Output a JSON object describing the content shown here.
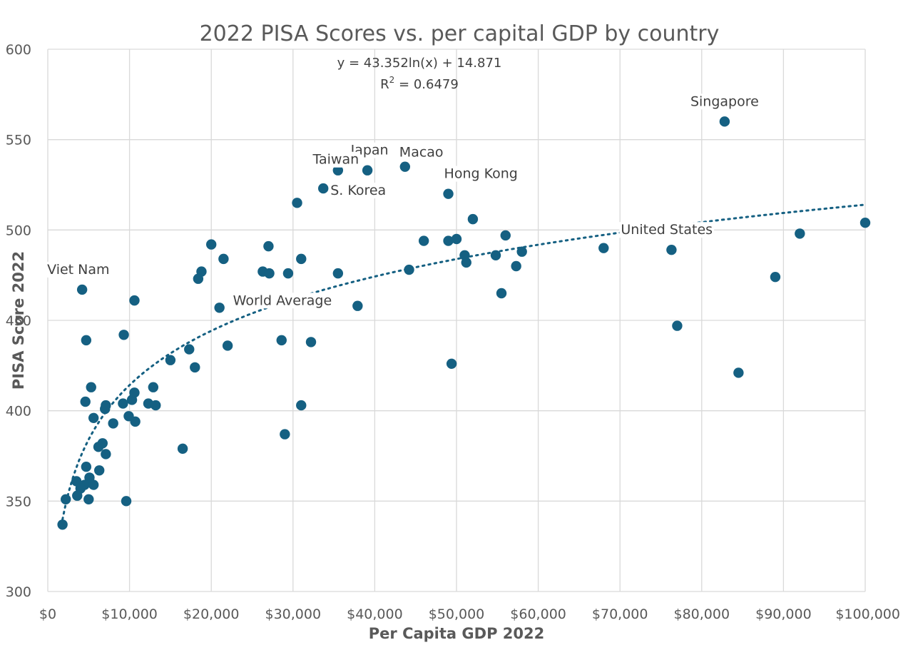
{
  "chart_data": {
    "type": "scatter",
    "title": "2022 PISA Scores vs. per capital GDP by country",
    "xlabel": "Per Capita GDP 2022",
    "ylabel": "PISA Score 2022",
    "xlim": [
      0,
      100000
    ],
    "ylim": [
      300,
      600
    ],
    "x_ticks": [
      0,
      10000,
      20000,
      30000,
      40000,
      50000,
      60000,
      70000,
      80000,
      90000,
      100000
    ],
    "x_tick_labels": [
      "$0",
      "$10,000",
      "$20,000",
      "$30,000",
      "$40,000",
      "$50,000",
      "$60,000",
      "$70,000",
      "$80,000",
      "$90,000",
      "$100,000"
    ],
    "y_ticks": [
      300,
      350,
      400,
      450,
      500,
      550,
      600
    ],
    "y_tick_labels": [
      "300",
      "350",
      "400",
      "450",
      "500",
      "550",
      "600"
    ],
    "grid": true,
    "legend": "none",
    "point_color": "#156082",
    "trendline": {
      "type": "logarithmic",
      "a": 43.352,
      "b": 14.871,
      "equation_label": "y = 43.352ln(x) + 14.871",
      "r2_label": "R",
      "r2_sup": "2",
      "r2_value": " = 0.6479",
      "style": "dotted"
    },
    "labels": [
      {
        "text": "Singapore",
        "x": 82800,
        "y": 560
      },
      {
        "text": "Japan",
        "x": 39100,
        "y": 533
      },
      {
        "text": "Macao",
        "x": 43700,
        "y": 535
      },
      {
        "text": "Taiwan",
        "x": 35500,
        "y": 533
      },
      {
        "text": "Hong Kong",
        "x": 49000,
        "y": 520
      },
      {
        "text": "S. Korea",
        "x": 33700,
        "y": 523
      },
      {
        "text": "United States",
        "x": 76300,
        "y": 489
      },
      {
        "text": "Viet Nam",
        "x": 4200,
        "y": 467
      },
      {
        "text": "World Average",
        "x": 21000,
        "y": 457
      }
    ],
    "points": [
      [
        82800,
        560
      ],
      [
        43700,
        535
      ],
      [
        39100,
        533
      ],
      [
        35500,
        533
      ],
      [
        33700,
        523
      ],
      [
        49000,
        520
      ],
      [
        30500,
        515
      ],
      [
        52000,
        506
      ],
      [
        100000,
        504
      ],
      [
        92000,
        498
      ],
      [
        56000,
        497
      ],
      [
        50000,
        495
      ],
      [
        49000,
        494
      ],
      [
        46000,
        494
      ],
      [
        20000,
        492
      ],
      [
        27000,
        491
      ],
      [
        68000,
        490
      ],
      [
        76300,
        489
      ],
      [
        58000,
        488
      ],
      [
        51000,
        486
      ],
      [
        54800,
        486
      ],
      [
        21500,
        484
      ],
      [
        31000,
        484
      ],
      [
        51200,
        482
      ],
      [
        57300,
        480
      ],
      [
        44200,
        478
      ],
      [
        26300,
        477
      ],
      [
        27100,
        476
      ],
      [
        29400,
        476
      ],
      [
        35500,
        476
      ],
      [
        18800,
        477
      ],
      [
        18400,
        473
      ],
      [
        89000,
        474
      ],
      [
        4200,
        467
      ],
      [
        55500,
        465
      ],
      [
        10600,
        461
      ],
      [
        37900,
        458
      ],
      [
        21000,
        457
      ],
      [
        77000,
        447
      ],
      [
        9300,
        442
      ],
      [
        4700,
        439
      ],
      [
        28600,
        439
      ],
      [
        32200,
        438
      ],
      [
        22000,
        436
      ],
      [
        17300,
        434
      ],
      [
        15000,
        428
      ],
      [
        49400,
        426
      ],
      [
        18000,
        424
      ],
      [
        84500,
        421
      ],
      [
        5300,
        413
      ],
      [
        12900,
        413
      ],
      [
        10600,
        410
      ],
      [
        10300,
        406
      ],
      [
        4600,
        405
      ],
      [
        9200,
        404
      ],
      [
        12300,
        404
      ],
      [
        13200,
        403
      ],
      [
        31000,
        403
      ],
      [
        7000,
        401
      ],
      [
        7100,
        403
      ],
      [
        9900,
        397
      ],
      [
        5600,
        396
      ],
      [
        10700,
        394
      ],
      [
        8000,
        393
      ],
      [
        29000,
        387
      ],
      [
        6700,
        382
      ],
      [
        6200,
        380
      ],
      [
        16500,
        379
      ],
      [
        7100,
        376
      ],
      [
        4700,
        369
      ],
      [
        6300,
        367
      ],
      [
        3500,
        361
      ],
      [
        5100,
        363
      ],
      [
        4500,
        359
      ],
      [
        5600,
        359
      ],
      [
        4000,
        357
      ],
      [
        3600,
        353
      ],
      [
        5000,
        351
      ],
      [
        2200,
        351
      ],
      [
        9600,
        350
      ],
      [
        1800,
        337
      ]
    ]
  }
}
